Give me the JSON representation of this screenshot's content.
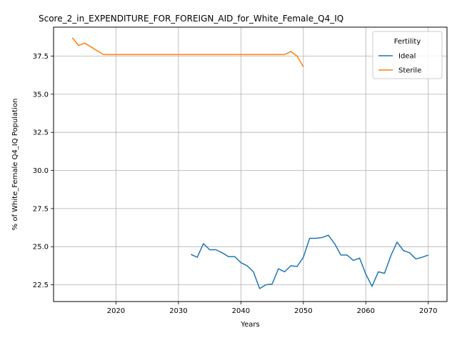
{
  "chart_data": {
    "type": "line",
    "title": "Score_2_in_EXPENDITURE_FOR_FOREIGN_AID_for_White_Female_Q4_IQ",
    "xlabel": "Years",
    "ylabel": "% of White_Female Q4_IQ Population",
    "xlim": [
      2010,
      2073
    ],
    "ylim": [
      21.4,
      39.4
    ],
    "xticks": [
      2020,
      2030,
      2040,
      2050,
      2060,
      2070
    ],
    "yticks": [
      22.5,
      25.0,
      27.5,
      30.0,
      32.5,
      35.0,
      37.5
    ],
    "ytick_labels": [
      "22.5",
      "25.0",
      "27.5",
      "30.0",
      "32.5",
      "35.0",
      "37.5"
    ],
    "grid": true,
    "legend": {
      "title": "Fertility",
      "placement": "top-right"
    },
    "series": [
      {
        "name": "Ideal",
        "color": "#1f77b4",
        "x": [
          2032,
          2033,
          2034,
          2035,
          2036,
          2037,
          2038,
          2039,
          2040,
          2041,
          2042,
          2043,
          2044,
          2045,
          2046,
          2047,
          2048,
          2049,
          2050,
          2051,
          2052,
          2053,
          2054,
          2055,
          2056,
          2057,
          2058,
          2059,
          2060,
          2061,
          2062,
          2063,
          2064,
          2065,
          2066,
          2067,
          2068,
          2069,
          2070
        ],
        "y": [
          24.5,
          24.3,
          25.2,
          24.8,
          24.8,
          24.6,
          24.35,
          24.35,
          23.95,
          23.75,
          23.35,
          22.25,
          22.5,
          22.55,
          23.55,
          23.35,
          23.75,
          23.7,
          24.3,
          25.55,
          25.55,
          25.6,
          25.75,
          25.2,
          24.45,
          24.45,
          24.1,
          24.25,
          23.2,
          22.4,
          23.35,
          23.25,
          24.4,
          25.3,
          24.75,
          24.6,
          24.2,
          24.3,
          24.45
        ]
      },
      {
        "name": "Sterile",
        "color": "#ff7f0e",
        "x": [
          2013,
          2014,
          2015,
          2016,
          2017,
          2018,
          2019,
          2020,
          2021,
          2022,
          2023,
          2024,
          2025,
          2026,
          2027,
          2028,
          2029,
          2030,
          2031,
          2032,
          2033,
          2034,
          2035,
          2036,
          2037,
          2038,
          2039,
          2040,
          2041,
          2042,
          2043,
          2044,
          2045,
          2046,
          2047,
          2048,
          2049,
          2050
        ],
        "y": [
          38.7,
          38.2,
          38.35,
          38.1,
          37.85,
          37.6,
          37.6,
          37.6,
          37.6,
          37.6,
          37.6,
          37.6,
          37.6,
          37.6,
          37.6,
          37.6,
          37.6,
          37.6,
          37.6,
          37.6,
          37.6,
          37.6,
          37.6,
          37.6,
          37.6,
          37.6,
          37.6,
          37.6,
          37.6,
          37.6,
          37.6,
          37.6,
          37.6,
          37.6,
          37.6,
          37.8,
          37.5,
          36.8
        ]
      }
    ]
  }
}
